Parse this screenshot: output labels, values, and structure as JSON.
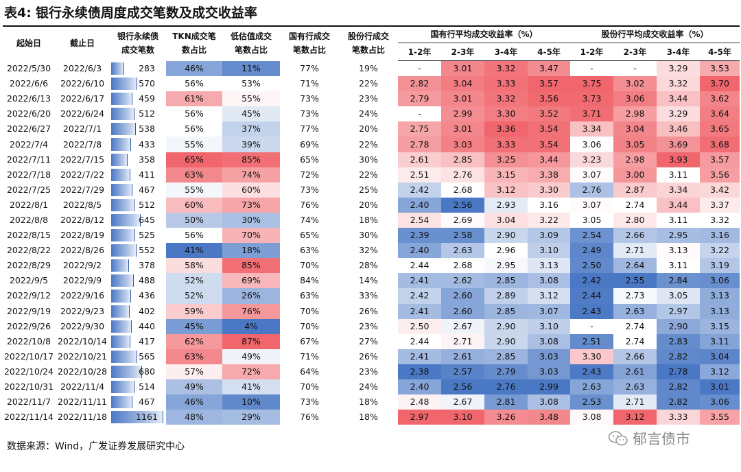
{
  "title": {
    "tag": "表4:",
    "text": "银行永续债周度成交笔数及成交收益率"
  },
  "headers": {
    "start": "起始日",
    "end": "截止日",
    "count": [
      "银行永续债",
      "成交笔数"
    ],
    "tkn": [
      "TKN成交笔",
      "数占比"
    ],
    "low": [
      "低估值成交",
      "笔数占比"
    ],
    "state": [
      "国有行成交",
      "笔数占比"
    ],
    "joint": [
      "股份行成交",
      "笔数占比"
    ],
    "state_group": "国有行平均成交收益率（%）",
    "joint_group": "股份行平均成交收益率（%）",
    "terms": [
      "1-2年",
      "2-3年",
      "3-4年",
      "4-5年"
    ]
  },
  "rows": [
    [
      "2022/5/30",
      "2022/6/3",
      "283",
      "46%",
      "11%",
      "77%",
      "19%",
      "-",
      "3.01",
      "3.32",
      "3.47",
      "-",
      "-",
      "3.29",
      "3.53"
    ],
    [
      "2022/6/6",
      "2022/6/10",
      "570",
      "56%",
      "53%",
      "71%",
      "22%",
      "2.82",
      "3.04",
      "3.33",
      "3.57",
      "3.75",
      "3.02",
      "3.32",
      "3.70"
    ],
    [
      "2022/6/13",
      "2022/6/17",
      "459",
      "61%",
      "55%",
      "73%",
      "23%",
      "2.79",
      "3.01",
      "3.32",
      "3.56",
      "3.73",
      "3.06",
      "3.44",
      "3.62"
    ],
    [
      "2022/6/20",
      "2022/6/24",
      "512",
      "56%",
      "45%",
      "73%",
      "24%",
      "-",
      "2.99",
      "3.30",
      "3.52",
      "3.71",
      "2.98",
      "3.29",
      "3.64"
    ],
    [
      "2022/6/27",
      "2022/7/1",
      "538",
      "56%",
      "37%",
      "77%",
      "20%",
      "2.75",
      "3.01",
      "3.36",
      "3.54",
      "3.34",
      "3.04",
      "3.46",
      "3.65"
    ],
    [
      "2022/7/4",
      "2022/7/8",
      "433",
      "55%",
      "39%",
      "69%",
      "22%",
      "2.78",
      "3.03",
      "3.33",
      "3.54",
      "3.06",
      "3.05",
      "3.69",
      "3.68"
    ],
    [
      "2022/7/11",
      "2022/7/15",
      "358",
      "65%",
      "85%",
      "65%",
      "30%",
      "2.61",
      "2.85",
      "3.25",
      "3.44",
      "3.23",
      "2.98",
      "3.93",
      "3.57"
    ],
    [
      "2022/7/18",
      "2022/7/22",
      "411",
      "63%",
      "74%",
      "72%",
      "22%",
      "2.51",
      "2.76",
      "3.15",
      "3.38",
      "3.07",
      "3.00",
      "3.11",
      "3.56"
    ],
    [
      "2022/7/25",
      "2022/7/29",
      "467",
      "55%",
      "60%",
      "73%",
      "25%",
      "2.42",
      "2.68",
      "3.12",
      "3.30",
      "2.76",
      "2.87",
      "3.34",
      "3.42"
    ],
    [
      "2022/8/1",
      "2022/8/5",
      "512",
      "60%",
      "73%",
      "76%",
      "20%",
      "2.40",
      "2.56",
      "2.93",
      "3.16",
      "3.07",
      "2.74",
      "3.44",
      "3.37"
    ],
    [
      "2022/8/8",
      "2022/8/12",
      "645",
      "50%",
      "30%",
      "74%",
      "18%",
      "2.54",
      "2.69",
      "3.04",
      "3.22",
      "3.05",
      "2.80",
      "3.11",
      "3.32"
    ],
    [
      "2022/8/15",
      "2022/8/19",
      "525",
      "56%",
      "70%",
      "65%",
      "30%",
      "2.39",
      "2.58",
      "2.90",
      "3.09",
      "2.54",
      "2.66",
      "2.95",
      "3.16"
    ],
    [
      "2022/8/22",
      "2022/8/26",
      "552",
      "41%",
      "18%",
      "63%",
      "32%",
      "2.40",
      "2.63",
      "2.96",
      "3.10",
      "2.49",
      "2.71",
      "3.13",
      "3.22"
    ],
    [
      "2022/8/29",
      "2022/9/2",
      "378",
      "58%",
      "85%",
      "70%",
      "28%",
      "2.44",
      "2.68",
      "2.95",
      "3.13",
      "2.50",
      "2.64",
      "3.11",
      "3.19"
    ],
    [
      "2022/9/5",
      "2022/9/9",
      "488",
      "52%",
      "69%",
      "84%",
      "14%",
      "2.41",
      "2.62",
      "2.85",
      "3.08",
      "2.42",
      "2.55",
      "2.84",
      "3.06"
    ],
    [
      "2022/9/12",
      "2022/9/16",
      "436",
      "52%",
      "26%",
      "63%",
      "33%",
      "2.42",
      "2.60",
      "2.89",
      "3.12",
      "2.44",
      "2.73",
      "3.05",
      "3.13"
    ],
    [
      "2022/9/19",
      "2022/9/23",
      "402",
      "59%",
      "76%",
      "70%",
      "26%",
      "2.41",
      "2.60",
      "2.85",
      "3.07",
      "2.43",
      "2.63",
      "2.97",
      "3.13"
    ],
    [
      "2022/9/26",
      "2022/9/30",
      "440",
      "45%",
      "4%",
      "70%",
      "23%",
      "2.50",
      "2.67",
      "2.90",
      "3.10",
      "-",
      "2.74",
      "2.90",
      "3.15"
    ],
    [
      "2022/10/8",
      "2022/10/14",
      "417",
      "62%",
      "87%",
      "67%",
      "27%",
      "2.44",
      "2.71",
      "2.90",
      "3.08",
      "2.51",
      "2.74",
      "2.83",
      "3.11"
    ],
    [
      "2022/10/17",
      "2022/10/21",
      "565",
      "63%",
      "49%",
      "71%",
      "26%",
      "2.41",
      "2.61",
      "2.85",
      "3.03",
      "3.30",
      "2.66",
      "2.82",
      "3.04"
    ],
    [
      "2022/10/24",
      "2022/10/28",
      "680",
      "57%",
      "72%",
      "64%",
      "23%",
      "2.38",
      "2.57",
      "2.79",
      "3.03",
      "2.43",
      "2.61",
      "2.78",
      "3.12"
    ],
    [
      "2022/10/31",
      "2022/11/4",
      "514",
      "49%",
      "41%",
      "70%",
      "24%",
      "2.40",
      "2.56",
      "2.76",
      "2.99",
      "2.63",
      "2.63",
      "2.82",
      "3.01"
    ],
    [
      "2022/11/7",
      "2022/11/11",
      "467",
      "46%",
      "10%",
      "73%",
      "18%",
      "2.48",
      "2.67",
      "2.81",
      "3.08",
      "2.53",
      "2.71",
      "2.82",
      "3.06"
    ],
    [
      "2022/11/14",
      "2022/11/18",
      "1161",
      "48%",
      "29%",
      "76%",
      "18%",
      "2.97",
      "3.10",
      "3.26",
      "3.48",
      "3.08",
      "3.12",
      "3.33",
      "3.55"
    ]
  ],
  "source": "数据来源：Wind，广发证券发展研究中心",
  "watermark": "郁言债市",
  "colors": {
    "low": "#4a78c4",
    "mid": "#ffffff",
    "high": "#f0666c"
  }
}
